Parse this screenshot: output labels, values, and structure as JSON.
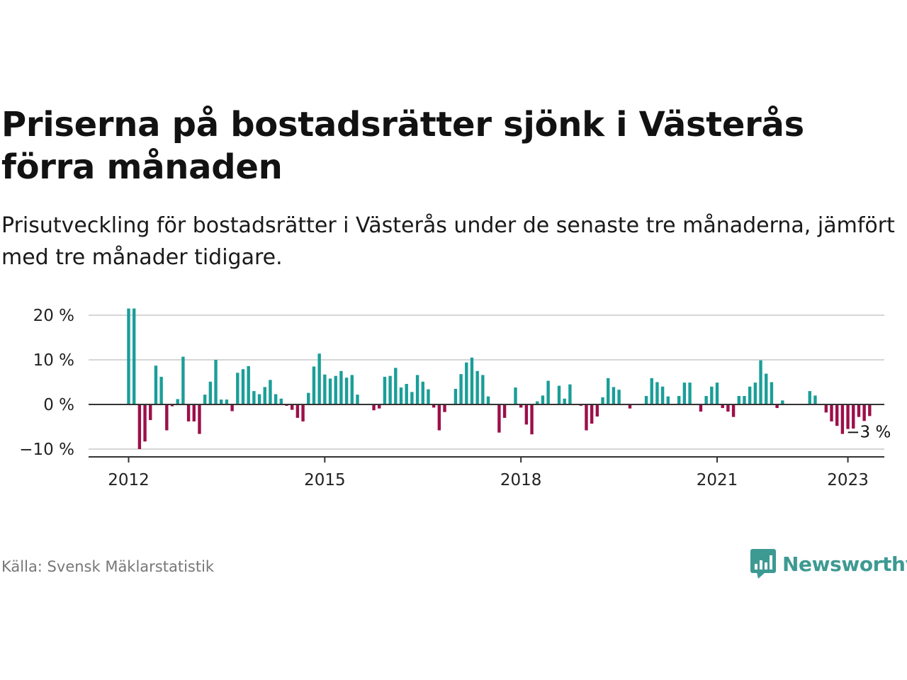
{
  "header": {
    "title": "Priserna på bostadsrätter sjönk i Västerås förra månaden",
    "subtitle": "Prisutveckling för bostadsrätter i Västerås under de senaste tre månaderna, jämfört med tre månader tidigare."
  },
  "footer": {
    "source": "Källa: Svensk Mäklarstatistik",
    "brand": "Newsworthy"
  },
  "colors": {
    "positive": "#1a9e98",
    "negative": "#9c0f4a",
    "grid": "#d6d6d6",
    "zero_line": "#333333",
    "brand": "#3d9a93"
  },
  "chart_data": {
    "type": "bar",
    "start": "2012-01",
    "x_tick_labels": [
      "2012",
      "2015",
      "2018",
      "2021",
      "2023"
    ],
    "y_tick_labels": [
      "20 %",
      "10 %",
      "0 %",
      "−10 %"
    ],
    "y_ticks": [
      20,
      10,
      0,
      -10
    ],
    "ylim": [
      -10.5,
      21
    ],
    "grid": true,
    "end_label": "−3 %",
    "values": [
      21.5,
      21.5,
      -10,
      -8.3,
      -3.5,
      8.7,
      6.2,
      -5.8,
      -0.4,
      1.2,
      10.7,
      -3.8,
      -3.8,
      -6.6,
      2.2,
      5.1,
      10.0,
      1.1,
      1.1,
      -1.5,
      7.1,
      7.9,
      8.6,
      3.0,
      2.3,
      3.9,
      5.5,
      2.3,
      1.3,
      -0.3,
      -1.2,
      -3.0,
      -3.8,
      2.6,
      8.5,
      11.4,
      6.7,
      5.8,
      6.4,
      7.5,
      6.0,
      6.6,
      2.2,
      0.0,
      -0.1,
      -1.3,
      -0.9,
      6.2,
      6.4,
      8.2,
      3.8,
      4.6,
      2.8,
      6.6,
      5.1,
      3.4,
      -0.7,
      -5.8,
      -1.7,
      0.0,
      3.5,
      6.8,
      9.4,
      10.5,
      7.5,
      6.6,
      1.8,
      -0.1,
      -6.3,
      -3.0,
      0.0,
      3.8,
      -0.7,
      -4.5,
      -6.7,
      0.7,
      2.0,
      5.3,
      0.0,
      4.2,
      1.3,
      4.5,
      0.0,
      -0.3,
      -5.8,
      -4.3,
      -2.7,
      1.6,
      5.9,
      3.9,
      3.3,
      0.0,
      -0.9,
      0.0,
      0.0,
      1.9,
      5.9,
      5.0,
      4.0,
      1.8,
      0.0,
      1.9,
      4.9,
      4.9,
      0.0,
      -1.6,
      1.9,
      4.0,
      4.9,
      -0.8,
      -1.6,
      -2.8,
      1.9,
      1.9,
      4.0,
      4.9,
      9.9,
      6.9,
      5.0,
      -0.8,
      0.9,
      0.0,
      0.0,
      0.0,
      0.0,
      3.0,
      2.0,
      0.0,
      -1.8,
      -3.8,
      -4.8,
      -6.6,
      -5.5,
      -5.4,
      -2.8,
      -3.7,
      -2.6
    ]
  }
}
